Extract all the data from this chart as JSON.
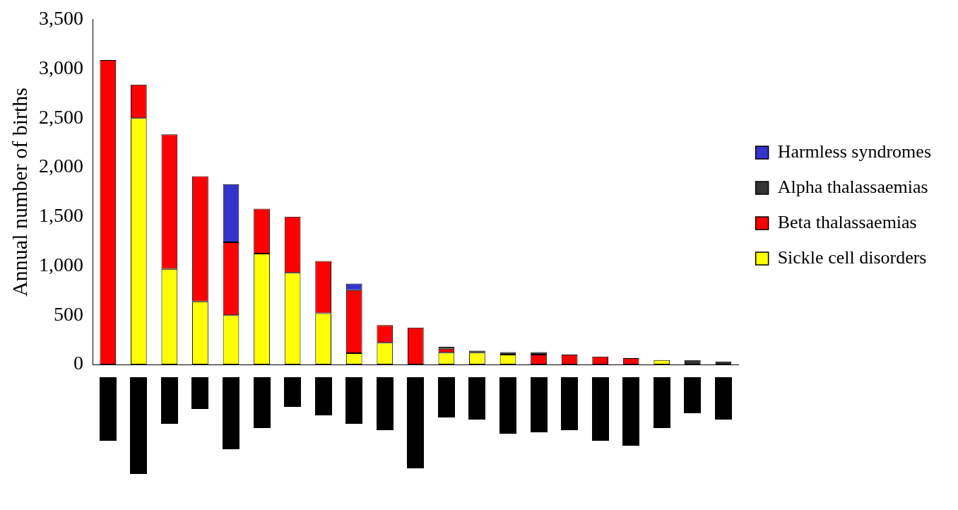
{
  "chart_data": {
    "type": "bar",
    "stacked": true,
    "ylabel": "Annual number of births",
    "categories": [
      null,
      null,
      null,
      null,
      null,
      null,
      null,
      null,
      null,
      null,
      null,
      null,
      null,
      null,
      null,
      null,
      null,
      null,
      null,
      null,
      null
    ],
    "series": [
      {
        "name": "Sickle cell disorders",
        "color": "#ffff00",
        "values": [
          0,
          2500,
          970,
          640,
          500,
          1125,
          930,
          520,
          115,
          220,
          0,
          120,
          120,
          100,
          0,
          0,
          0,
          0,
          45,
          0,
          0
        ]
      },
      {
        "name": "Beta thalassaemias",
        "color": "#ff0000",
        "values": [
          3090,
          340,
          1365,
          1270,
          740,
          455,
          570,
          530,
          640,
          180,
          375,
          40,
          0,
          0,
          100,
          100,
          80,
          65,
          0,
          0,
          0
        ]
      },
      {
        "name": "Alpha thalassaemias",
        "color": "#333333",
        "values": [
          0,
          0,
          0,
          0,
          0,
          0,
          0,
          0,
          0,
          0,
          0,
          20,
          20,
          25,
          25,
          0,
          0,
          0,
          0,
          45,
          30
        ]
      },
      {
        "name": "Harmless syndromes",
        "color": "#3333cc",
        "values": [
          0,
          0,
          0,
          0,
          590,
          0,
          0,
          0,
          65,
          0,
          0,
          0,
          0,
          0,
          0,
          0,
          0,
          0,
          0,
          0,
          0
        ]
      }
    ],
    "ylim": [
      0,
      3500
    ],
    "yticks": [
      {
        "value": 0,
        "label": "0"
      },
      {
        "value": 500,
        "label": "500"
      },
      {
        "value": 1000,
        "label": "1,000"
      },
      {
        "value": 1500,
        "label": "1,500"
      },
      {
        "value": 2000,
        "label": "2,000"
      },
      {
        "value": 2500,
        "label": "2,500"
      },
      {
        "value": 3000,
        "label": "3,000"
      },
      {
        "value": 3500,
        "label": "3,500"
      }
    ],
    "grid": false,
    "legend": "right"
  }
}
